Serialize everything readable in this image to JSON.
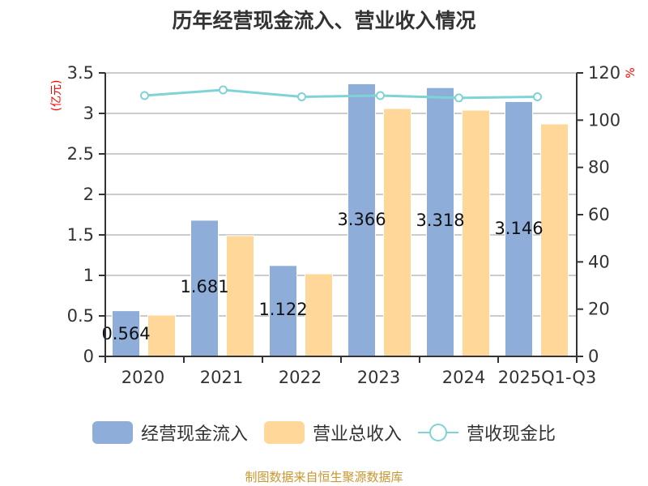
{
  "title": "历年经营现金流入、营业收入情况",
  "left_axis_unit": "(亿元)",
  "right_axis_unit": "%",
  "legend": {
    "series1": "经营现金流入",
    "series2": "营业总收入",
    "series3": "营收现金比"
  },
  "source": "制图数据来自恒生聚源数据库",
  "colors": {
    "cash_inflow": "#8eadd9",
    "revenue": "#ffd899",
    "ratio": "#7fd3d6",
    "unit_red": "#ff0000",
    "source_gold": "#c8962e"
  },
  "chart_data": {
    "type": "bar",
    "title": "历年经营现金流入、营业收入情况",
    "categories": [
      "2020",
      "2021",
      "2022",
      "2023",
      "2024",
      "2025Q1-Q3"
    ],
    "series": [
      {
        "name": "经营现金流入",
        "type": "bar",
        "axis": "left",
        "values": [
          0.564,
          1.681,
          1.122,
          3.366,
          3.318,
          3.146
        ],
        "labels": [
          "0.564",
          "1.681",
          "1.122",
          "3.366",
          "3.318",
          "3.146"
        ]
      },
      {
        "name": "营业总收入",
        "type": "bar",
        "axis": "left",
        "values": [
          0.51,
          1.49,
          1.02,
          3.06,
          3.04,
          2.87
        ]
      },
      {
        "name": "营收现金比",
        "type": "line",
        "axis": "right",
        "values": [
          110.4,
          112.8,
          109.9,
          110.4,
          109.4,
          109.9
        ]
      }
    ],
    "ylabel": "(亿元)",
    "ylabel_right": "%",
    "ylim": [
      0,
      3.5
    ],
    "yticks": [
      "0",
      "0.5",
      "1",
      "1.5",
      "2",
      "2.5",
      "3",
      "3.5"
    ],
    "ylim_right": [
      0,
      120
    ],
    "yticks_right": [
      "0",
      "20",
      "40",
      "60",
      "80",
      "100",
      "120"
    ],
    "grid": true,
    "legend_position": "bottom"
  }
}
